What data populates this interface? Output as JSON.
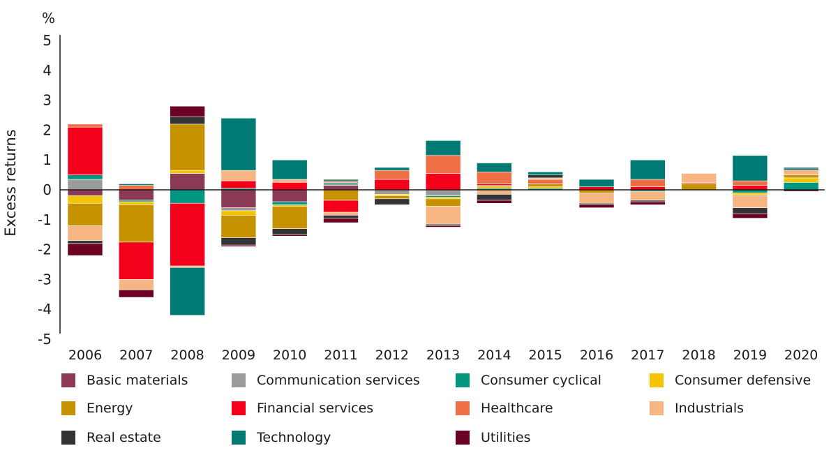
{
  "chart_data": {
    "type": "bar",
    "stacked": true,
    "unit_label": "%",
    "ylabel": "Excess returns",
    "xlabel": "",
    "ylim": [
      -5,
      5
    ],
    "yticks": [
      5,
      4,
      3,
      2,
      1,
      0,
      -1,
      -2,
      -3,
      -4,
      -5
    ],
    "categories": [
      "2006",
      "2007",
      "2008",
      "2009",
      "2010",
      "2011",
      "2012",
      "2013",
      "2014",
      "2015",
      "2016",
      "2017",
      "2018",
      "2019",
      "2020"
    ],
    "grid": false,
    "legend_position": "bottom",
    "series": [
      {
        "name": "Basic materials",
        "color": "#8a3a55",
        "values": [
          -0.2,
          -0.35,
          0.55,
          -0.6,
          -0.4,
          0.15,
          0.0,
          0.0,
          0.0,
          0.0,
          0.0,
          0.0,
          0.0,
          0.0,
          0.0
        ]
      },
      {
        "name": "Communication services",
        "color": "#9b9b9b",
        "values": [
          0.35,
          0.0,
          0.0,
          -0.1,
          0.0,
          0.05,
          -0.15,
          -0.2,
          0.0,
          0.0,
          0.0,
          0.0,
          0.0,
          0.0,
          0.0
        ]
      },
      {
        "name": "Consumer cyclical",
        "color": "#00957f",
        "values": [
          0.15,
          -0.05,
          -0.45,
          0.05,
          -0.1,
          0.05,
          0.0,
          -0.05,
          0.05,
          0.05,
          0.0,
          -0.05,
          0.0,
          -0.1,
          0.25
        ]
      },
      {
        "name": "Consumer defensive",
        "color": "#f5c400",
        "values": [
          -0.25,
          -0.1,
          0.1,
          -0.15,
          -0.05,
          0.0,
          -0.05,
          -0.05,
          0.05,
          0.05,
          0.0,
          0.0,
          0.0,
          -0.05,
          0.15
        ]
      },
      {
        "name": "Energy",
        "color": "#c69200",
        "values": [
          -0.75,
          -1.25,
          1.55,
          -0.75,
          -0.75,
          -0.35,
          -0.1,
          -0.25,
          0.05,
          0.1,
          -0.1,
          0.0,
          0.2,
          -0.05,
          0.1
        ]
      },
      {
        "name": "Financial services",
        "color": "#f5001a",
        "values": [
          1.6,
          -1.25,
          -2.1,
          0.25,
          0.25,
          -0.4,
          0.35,
          0.55,
          0.05,
          0.0,
          0.1,
          0.1,
          0.0,
          0.15,
          0.0
        ]
      },
      {
        "name": "Healthcare",
        "color": "#ee6e45",
        "values": [
          0.1,
          0.15,
          0.0,
          0.0,
          0.0,
          0.05,
          0.3,
          0.6,
          0.4,
          0.15,
          0.0,
          0.25,
          0.05,
          0.15,
          0.0
        ]
      },
      {
        "name": "Industrials",
        "color": "#f7b583",
        "values": [
          -0.5,
          -0.35,
          -0.05,
          0.35,
          0.1,
          -0.1,
          0.0,
          -0.6,
          -0.15,
          0.05,
          -0.35,
          -0.3,
          0.3,
          -0.4,
          0.15
        ]
      },
      {
        "name": "Real estate",
        "color": "#333333",
        "values": [
          -0.1,
          0.0,
          0.25,
          -0.25,
          -0.2,
          -0.1,
          -0.2,
          -0.05,
          -0.2,
          0.1,
          -0.05,
          -0.05,
          0.0,
          -0.2,
          0.05
        ]
      },
      {
        "name": "Technology",
        "color": "#007a72",
        "values": [
          0.0,
          0.05,
          -1.6,
          1.75,
          0.65,
          0.05,
          0.1,
          0.5,
          0.3,
          0.1,
          0.25,
          0.65,
          0.0,
          0.85,
          0.05
        ]
      },
      {
        "name": "Utilities",
        "color": "#6b0022",
        "values": [
          -0.4,
          -0.25,
          0.35,
          -0.05,
          -0.05,
          -0.15,
          0.0,
          -0.05,
          -0.1,
          0.0,
          -0.1,
          -0.1,
          0.0,
          -0.15,
          -0.05
        ]
      }
    ]
  }
}
